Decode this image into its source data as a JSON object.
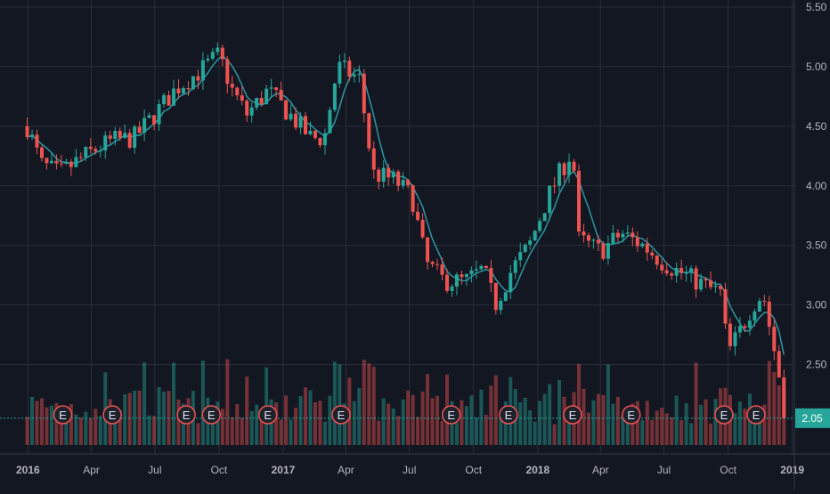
{
  "chart_data": {
    "type": "candlestick",
    "title": "",
    "xlabel": "",
    "ylabel": "",
    "ylim": [
      1.75,
      5.5
    ],
    "grid": true,
    "colors": {
      "background": "#131722",
      "grid": "#2a2e39",
      "up": "#26a69a",
      "down": "#ef5350",
      "ma": "#2a97a3",
      "axis_text": "#b2b5be",
      "price_line": "#26a69a",
      "earnings_marker": "#ef5350"
    },
    "y_ticks": [
      "2.50",
      "3.00",
      "3.50",
      "4.00",
      "4.50",
      "5.00",
      "5.50"
    ],
    "x_ticks": [
      "2016",
      "Apr",
      "Jul",
      "Oct",
      "2017",
      "Apr",
      "Jul",
      "Oct",
      "2018",
      "Apr",
      "Jul",
      "Oct",
      "2019"
    ],
    "last_price": {
      "label": "2.05",
      "value": 2.05
    },
    "earnings_label": "E",
    "earnings_dates": [
      "2016-02-20",
      "2016-05-01",
      "2016-08-15",
      "2016-09-20",
      "2016-12-10",
      "2017-03-25",
      "2017-08-30",
      "2017-11-20",
      "2018-02-20",
      "2018-05-15",
      "2018-09-25",
      "2018-11-10"
    ],
    "price_anchors": [
      [
        "2015-12-31",
        4.5
      ],
      [
        "2016-01-20",
        4.18
      ],
      [
        "2016-02-15",
        4.1
      ],
      [
        "2016-03-10",
        4.2
      ],
      [
        "2016-04-05",
        4.3
      ],
      [
        "2016-05-01",
        4.38
      ],
      [
        "2016-06-01",
        4.4
      ],
      [
        "2016-07-01",
        4.6
      ],
      [
        "2016-08-01",
        4.82
      ],
      [
        "2016-09-01",
        4.95
      ],
      [
        "2016-10-01",
        5.1
      ],
      [
        "2016-10-20",
        4.8
      ],
      [
        "2016-11-10",
        4.6
      ],
      [
        "2016-12-10",
        4.8
      ],
      [
        "2017-01-10",
        4.6
      ],
      [
        "2017-02-10",
        4.4
      ],
      [
        "2017-03-01",
        4.4
      ],
      [
        "2017-03-20",
        5.0
      ],
      [
        "2017-04-20",
        4.9
      ],
      [
        "2017-05-10",
        4.1
      ],
      [
        "2017-06-10",
        4.05
      ],
      [
        "2017-07-05",
        3.9
      ],
      [
        "2017-07-25",
        3.35
      ],
      [
        "2017-08-20",
        3.2
      ],
      [
        "2017-09-20",
        3.2
      ],
      [
        "2017-10-15",
        3.3
      ],
      [
        "2017-11-01",
        3.0
      ],
      [
        "2017-11-25",
        3.3
      ],
      [
        "2017-12-20",
        3.5
      ],
      [
        "2018-01-15",
        3.9
      ],
      [
        "2018-02-01",
        4.1
      ],
      [
        "2018-02-20",
        4.3
      ],
      [
        "2018-03-01",
        3.55
      ],
      [
        "2018-04-01",
        3.45
      ],
      [
        "2018-05-01",
        3.6
      ],
      [
        "2018-06-01",
        3.5
      ],
      [
        "2018-07-01",
        3.35
      ],
      [
        "2018-08-01",
        3.25
      ],
      [
        "2018-09-01",
        3.15
      ],
      [
        "2018-09-20",
        3.1
      ],
      [
        "2018-10-01",
        2.6
      ],
      [
        "2018-10-20",
        2.8
      ],
      [
        "2018-11-05",
        3.0
      ],
      [
        "2018-11-20",
        3.1
      ],
      [
        "2018-12-10",
        2.5
      ],
      [
        "2018-12-25",
        2.05
      ]
    ]
  }
}
